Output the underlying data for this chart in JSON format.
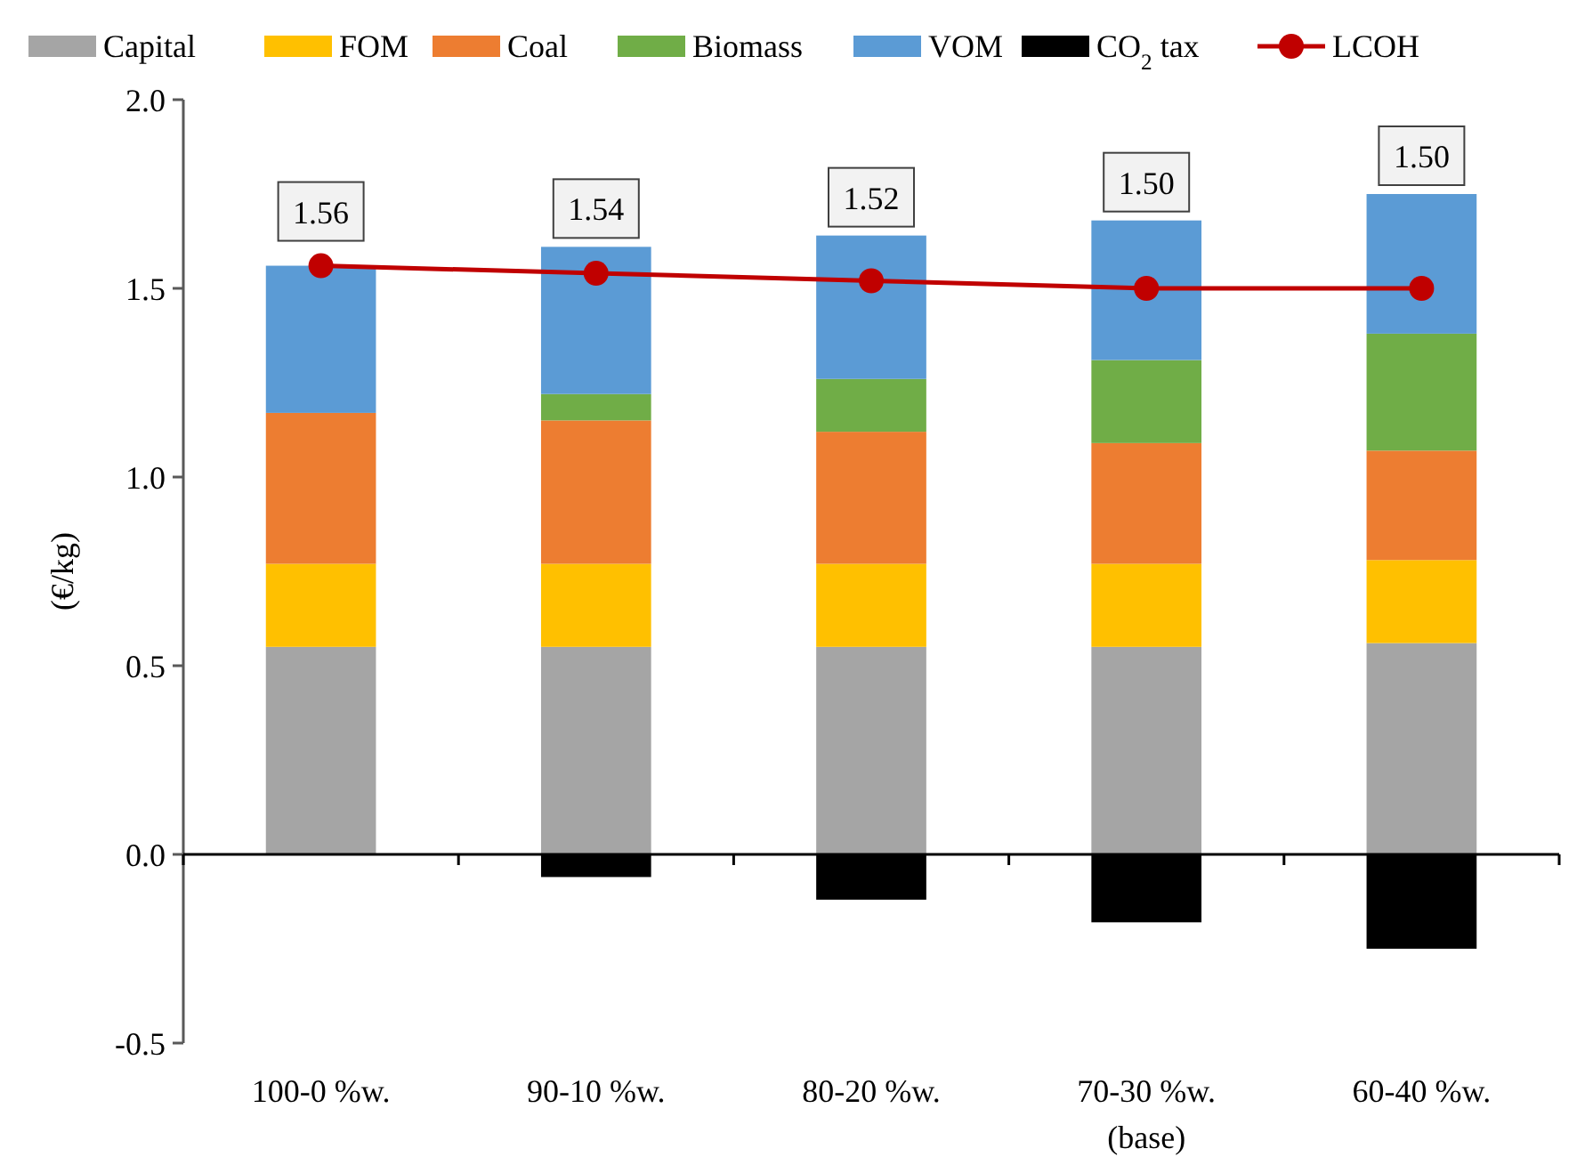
{
  "chart_data": {
    "type": "bar",
    "stacked": true,
    "ylabel": "(€/kg)",
    "legend": "top",
    "categories": [
      "100-0 %w.",
      "90-10 %w.",
      "80-20 %w.",
      "70-30 %w.\n(base)",
      "60-40 %w."
    ],
    "ylim": [
      -0.5,
      2.0
    ],
    "yticks": [
      {
        "value": -0.5,
        "label": "-0.5"
      },
      {
        "value": 0,
        "label": "0.0"
      },
      {
        "value": 0.5,
        "label": "0.5"
      },
      {
        "value": 1,
        "label": "1.0"
      },
      {
        "value": 1.5,
        "label": "1.5"
      },
      {
        "value": 2,
        "label": "2.0"
      }
    ],
    "series": [
      {
        "name": "Capital",
        "color": "#a5a5a5",
        "values": [
          0.55,
          0.55,
          0.55,
          0.55,
          0.56
        ]
      },
      {
        "name": "FOM",
        "color": "#ffc000",
        "values": [
          0.22,
          0.22,
          0.22,
          0.22,
          0.22
        ]
      },
      {
        "name": "Coal",
        "color": "#ed7d31",
        "values": [
          0.4,
          0.38,
          0.35,
          0.32,
          0.29
        ]
      },
      {
        "name": "Biomass",
        "color": "#70ad47",
        "values": [
          0,
          0.07,
          0.14,
          0.22,
          0.31
        ]
      },
      {
        "name": "VOM",
        "color": "#5b9bd5",
        "values": [
          0.39,
          0.39,
          0.38,
          0.37,
          0.37
        ]
      },
      {
        "name": "CO$_{2}$ tax",
        "color": "#000000",
        "values": [
          0,
          -0.06,
          -0.12,
          -0.18,
          -0.25
        ]
      },
      {
        "name": "LCOH",
        "type": "line",
        "color": "#c00000",
        "marker": "circle",
        "values": [
          1.56,
          1.54,
          1.52,
          1.5,
          1.5
        ],
        "value_labels": [
          "1.56",
          "1.54",
          "1.52",
          "1.50",
          "1.50"
        ]
      }
    ]
  }
}
